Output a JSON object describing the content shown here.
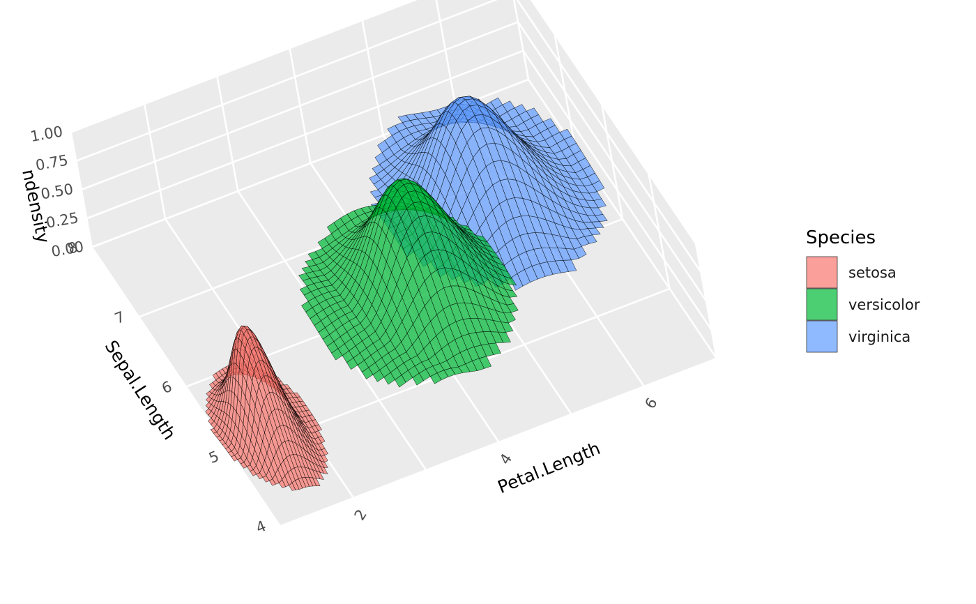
{
  "chart_data": {
    "type": "surface3d",
    "z_axis": {
      "title": "ndensity",
      "ticks": [
        "0.00",
        "0.25",
        "0.50",
        "0.75",
        "1.00"
      ],
      "range": [
        0,
        1
      ]
    },
    "y_axis": {
      "title": "Sepal.Length",
      "ticks": [
        "4",
        "5",
        "6",
        "7",
        "8"
      ],
      "range": [
        4,
        8
      ]
    },
    "x_axis": {
      "title": "Petal.Length",
      "ticks": [
        "2",
        "4",
        "6"
      ],
      "range": [
        1,
        7
      ]
    },
    "legend": {
      "title": "Species",
      "position": "right",
      "entries": [
        {
          "label": "setosa",
          "color": "#F8766D"
        },
        {
          "label": "versicolor",
          "color": "#00BA38"
        },
        {
          "label": "virginica",
          "color": "#619CFF"
        }
      ]
    },
    "series": [
      {
        "name": "setosa",
        "color": "#F8766D",
        "peak": {
          "x": 1.46,
          "y": 5.0,
          "z": 1.0
        },
        "x_extent": [
          0.9,
          2.1
        ],
        "y_extent": [
          4.2,
          5.9
        ]
      },
      {
        "name": "versicolor",
        "color": "#00BA38",
        "peak": {
          "x": 4.26,
          "y": 5.94,
          "z": 1.0
        },
        "x_extent": [
          2.8,
          5.3
        ],
        "y_extent": [
          4.8,
          7.1
        ]
      },
      {
        "name": "virginica",
        "color": "#619CFF",
        "peak": {
          "x": 5.55,
          "y": 6.59,
          "z": 1.0
        },
        "x_extent": [
          4.3,
          7.0
        ],
        "y_extent": [
          5.5,
          8.0
        ]
      }
    ]
  }
}
